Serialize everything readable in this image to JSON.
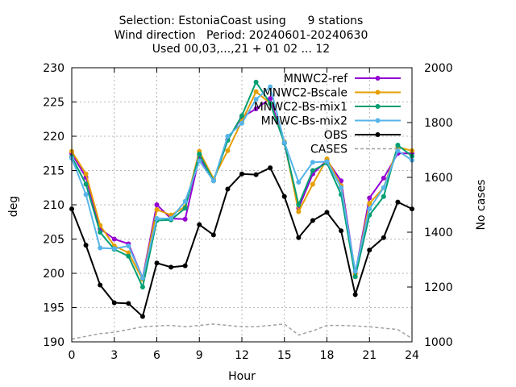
{
  "chart_data": {
    "type": "line",
    "title_lines": [
      "Selection: EstoniaCoast using      9 stations",
      "Wind direction   Period: 20240601-20240630",
      "Used 00,03,...,21 + 01 02 ... 12"
    ],
    "xlabel": "Hour",
    "ylabel": "deg",
    "y2label": "No cases",
    "xlim": [
      0,
      24
    ],
    "ylim": [
      190,
      230
    ],
    "y2lim": [
      1000,
      2000
    ],
    "xticks": [
      0,
      3,
      6,
      9,
      12,
      15,
      18,
      21,
      24
    ],
    "yticks": [
      190,
      195,
      200,
      205,
      210,
      215,
      220,
      225,
      230
    ],
    "y2ticks": [
      1000,
      1200,
      1400,
      1600,
      1800,
      2000
    ],
    "grid": true,
    "legend_position": "top-right",
    "x": [
      0,
      1,
      2,
      3,
      4,
      5,
      6,
      7,
      8,
      9,
      10,
      11,
      12,
      13,
      14,
      15,
      16,
      17,
      18,
      19,
      20,
      21,
      22,
      23,
      24
    ],
    "series": [
      {
        "name": "MNWC2-ref",
        "color": "#9400d3",
        "marker": "circle",
        "values": [
          217.5,
          214,
          206.5,
          205,
          204.3,
          199.3,
          210,
          208,
          207.9,
          217,
          213.5,
          219.5,
          222.8,
          224,
          225.5,
          219,
          209.5,
          214.5,
          216.5,
          213.5,
          200,
          211,
          213.9,
          217.5,
          217.5
        ]
      },
      {
        "name": "MNWC2-Bscale",
        "color": "#e69f00",
        "marker": "circle",
        "values": [
          217.8,
          214.5,
          207,
          204,
          203,
          199.1,
          209.3,
          208.5,
          209.7,
          217.8,
          213.8,
          217.9,
          222.2,
          226.5,
          224.8,
          219.2,
          209,
          213,
          216.7,
          212.8,
          199.9,
          210.2,
          212.5,
          218.4,
          217.9
        ]
      },
      {
        "name": "MNWC2-Bs-mix1",
        "color": "#009e73",
        "marker": "circle",
        "values": [
          217,
          213,
          206,
          203.5,
          202.5,
          198,
          207.7,
          207.8,
          209.5,
          217.4,
          213.5,
          219.4,
          223,
          227.9,
          224.8,
          219,
          210,
          215,
          216.1,
          211.5,
          199.5,
          208.5,
          211.2,
          218.7,
          217.1
        ]
      },
      {
        "name": "MNWC-Bs-mix2",
        "color": "#56b4e9",
        "marker": "circle",
        "values": [
          216.8,
          211.5,
          203.7,
          203.6,
          204,
          199.3,
          208,
          208,
          210.5,
          216.4,
          213.5,
          220,
          221.9,
          225.4,
          227.2,
          219.1,
          213.3,
          216.2,
          216.3,
          212.5,
          200.3,
          209.4,
          212.5,
          217.9,
          216.5
        ]
      },
      {
        "name": "OBS",
        "color": "#000000",
        "marker": "circle",
        "values": [
          209.4,
          204.1,
          198.3,
          195.7,
          195.6,
          193.7,
          201.5,
          200.9,
          201.1,
          207.1,
          205.6,
          212.3,
          214.5,
          214.4,
          215.4,
          211.2,
          205.2,
          207.7,
          208.9,
          206.2,
          196.9,
          203.4,
          205.2,
          210.4,
          209.4
        ]
      }
    ],
    "cases": {
      "name": "CASES",
      "color": "#a0a0a0",
      "axis": "y2",
      "values": [
        1010,
        1020,
        1030,
        1035,
        1045,
        1055,
        1058,
        1060,
        1055,
        1060,
        1065,
        1060,
        1055,
        1055,
        1060,
        1065,
        1025,
        1040,
        1060,
        1060,
        1058,
        1055,
        1050,
        1045,
        1012
      ]
    }
  }
}
